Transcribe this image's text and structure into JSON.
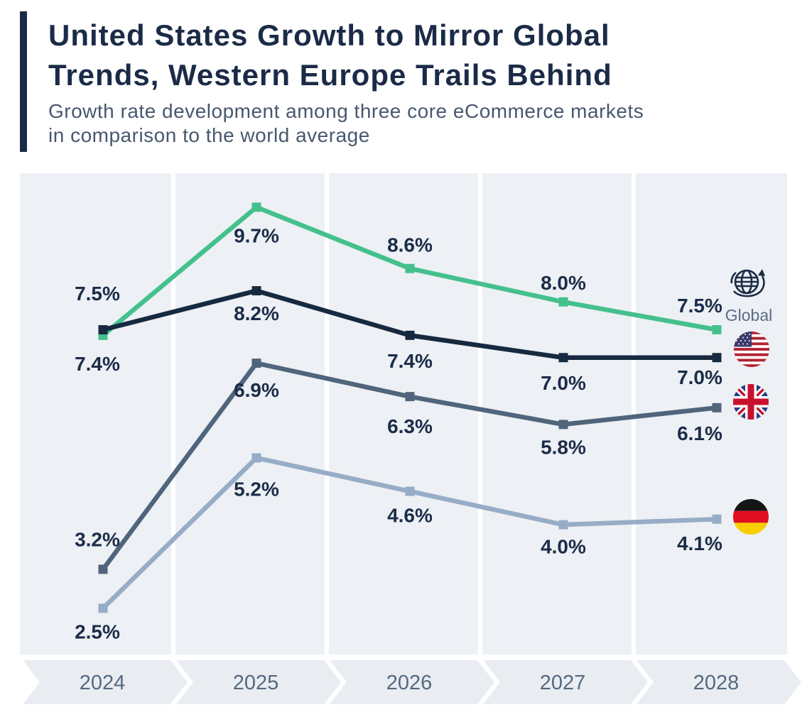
{
  "header": {
    "title_line1": "United States Growth to Mirror Global",
    "title_line2": "Trends, Western Europe Trails Behind",
    "subtitle_line1": "Growth rate development among three core eCommerce markets",
    "subtitle_line2": "in comparison to the world average"
  },
  "colors": {
    "accent": "#1B2B47",
    "plot_background": "#EDF0F4",
    "gridline": "#FFFFFF",
    "axis_band": "#E9EDF2",
    "data_label": "#1B2C49",
    "year_label": "#55697F"
  },
  "chart_data": {
    "type": "line",
    "title": "United States Growth to Mirror Global Trends, Western Europe Trails Behind",
    "subtitle": "Growth rate development among three core eCommerce markets in comparison to the world average",
    "x": [
      "2024",
      "2025",
      "2026",
      "2027",
      "2028"
    ],
    "ylim": [
      1.67,
      10.31
    ],
    "grid": "vertical-column-separators",
    "legend_position": "right",
    "series": [
      {
        "name": "Global",
        "icon": "globe-icon",
        "legend_label": "Global",
        "color": "#44C08D",
        "values": [
          7.4,
          9.7,
          8.6,
          8.0,
          7.5
        ],
        "labels": [
          "7.4%",
          "9.7%",
          "8.6%",
          "8.0%",
          "7.5%"
        ],
        "label_side": [
          "below",
          "below",
          "above",
          "above",
          "above"
        ],
        "label_dy": [
          40,
          40,
          -33,
          -27,
          -34
        ]
      },
      {
        "name": "United States",
        "icon": "us-flag-icon",
        "color": "#16293F",
        "values": [
          7.5,
          8.2,
          7.4,
          7.0,
          7.0
        ],
        "labels": [
          "7.5%",
          "8.2%",
          "7.4%",
          "7.0%",
          "7.0%"
        ],
        "label_side": [
          "above",
          "below",
          "below",
          "below",
          "below"
        ],
        "label_dy": [
          -51,
          32,
          36,
          36,
          28
        ]
      },
      {
        "name": "United Kingdom",
        "icon": "uk-flag-icon",
        "color": "#50657B",
        "values": [
          3.2,
          6.9,
          6.3,
          5.8,
          6.1
        ],
        "labels": [
          "3.2%",
          "6.9%",
          "6.3%",
          "5.8%",
          "6.1%"
        ],
        "label_side": [
          "above",
          "below",
          "below",
          "below",
          "below"
        ],
        "label_dy": [
          -42,
          38,
          42,
          32,
          36
        ]
      },
      {
        "name": "Germany",
        "icon": "germany-flag-icon",
        "color": "#97ACC6",
        "values": [
          2.5,
          5.2,
          4.6,
          4.0,
          4.1
        ],
        "labels": [
          "2.5%",
          "5.2%",
          "4.6%",
          "4.0%",
          "4.1%"
        ],
        "label_side": [
          "below",
          "below",
          "below",
          "below",
          "below"
        ],
        "label_dy": [
          33,
          44,
          34,
          31,
          34
        ]
      }
    ]
  }
}
